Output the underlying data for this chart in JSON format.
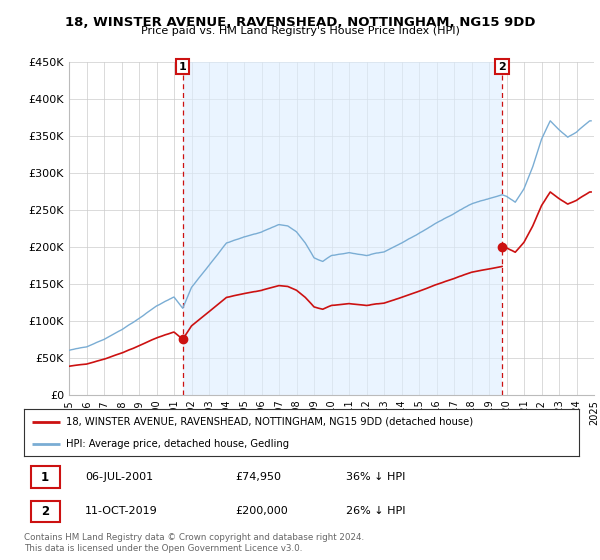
{
  "title": "18, WINSTER AVENUE, RAVENSHEAD, NOTTINGHAM, NG15 9DD",
  "subtitle": "Price paid vs. HM Land Registry's House Price Index (HPI)",
  "ylim": [
    0,
    450000
  ],
  "yticks": [
    0,
    50000,
    100000,
    150000,
    200000,
    250000,
    300000,
    350000,
    400000,
    450000
  ],
  "ytick_labels": [
    "£0",
    "£50K",
    "£100K",
    "£150K",
    "£200K",
    "£250K",
    "£300K",
    "£350K",
    "£400K",
    "£450K"
  ],
  "x_start_year": 1995,
  "x_end_year": 2025,
  "xtick_years": [
    1995,
    1996,
    1997,
    1998,
    1999,
    2000,
    2001,
    2002,
    2003,
    2004,
    2005,
    2006,
    2007,
    2008,
    2009,
    2010,
    2011,
    2012,
    2013,
    2014,
    2015,
    2016,
    2017,
    2018,
    2019,
    2020,
    2021,
    2022,
    2023,
    2024,
    2025
  ],
  "hpi_color": "#7aadd4",
  "hpi_fill_color": "#ddeeff",
  "sale_color": "#cc1111",
  "vline_color": "#cc1111",
  "background_color": "#ffffff",
  "grid_color": "#cccccc",
  "legend_line1": "18, WINSTER AVENUE, RAVENSHEAD, NOTTINGHAM, NG15 9DD (detached house)",
  "legend_line2": "HPI: Average price, detached house, Gedling",
  "sale1_x": 2001.5,
  "sale1_price": 74950,
  "sale1_date": "06-JUL-2001",
  "sale1_pct": "36% ↓ HPI",
  "sale2_x": 2019.75,
  "sale2_price": 200000,
  "sale2_date": "11-OCT-2019",
  "sale2_pct": "26% ↓ HPI",
  "footnote": "Contains HM Land Registry data © Crown copyright and database right 2024.\nThis data is licensed under the Open Government Licence v3.0."
}
